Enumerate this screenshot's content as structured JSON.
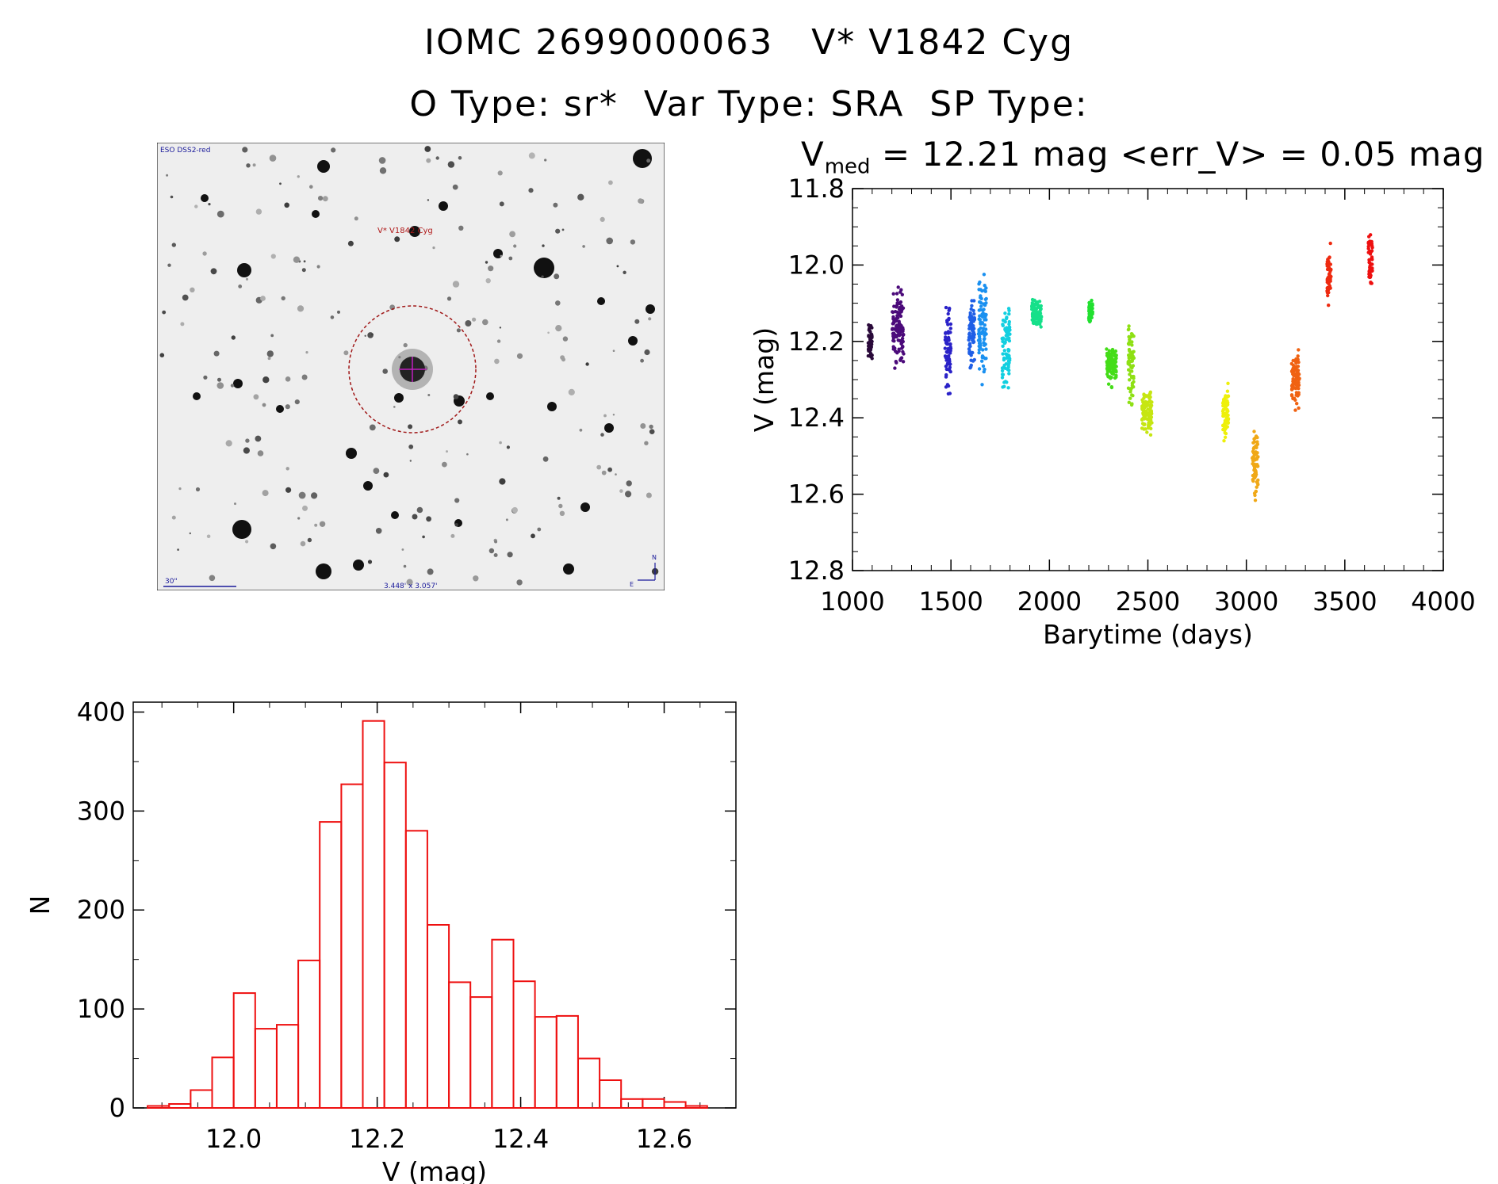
{
  "header": {
    "object_id": "IOMC 2699000063",
    "object_name": "V* V1842 Cyg",
    "o_type": "O Type: sr*",
    "var_type": "Var Type: SRA",
    "sp_type": "SP Type:"
  },
  "stats": {
    "v_prefix": "V",
    "v_sub": "med",
    "v_rest": " = 12.21 mag <err_V> = 0.05 mag"
  },
  "finder_chart": {
    "survey_label": "ESO DSS2-red",
    "target_label": "V* V1842 Cyg",
    "scale_label": "30\"",
    "fov_label": "3.448' x 3.057'",
    "north_label": "N",
    "east_label": "E"
  },
  "chart_data": [
    {
      "type": "scatter",
      "title": "",
      "xlabel": "Barytime (days)",
      "ylabel": "V (mag)",
      "xlim": [
        1000,
        4000
      ],
      "ylim": [
        12.8,
        11.8
      ],
      "y_inverted": true,
      "x_ticks": [
        "1000",
        "1500",
        "2000",
        "2500",
        "3000",
        "3500",
        "4000"
      ],
      "y_ticks": [
        "11.8",
        "12.0",
        "12.2",
        "12.4",
        "12.6",
        "12.8"
      ],
      "series": [
        {
          "color": "#2a0a3a",
          "x_range": [
            1080,
            1100
          ],
          "y_mean": 12.19,
          "y_min": 12.13,
          "y_max": 12.27
        },
        {
          "color": "#4b0a7a",
          "x_range": [
            1200,
            1260
          ],
          "y_mean": 12.15,
          "y_min": 12.04,
          "y_max": 12.3
        },
        {
          "color": "#2a22c8",
          "x_range": [
            1470,
            1500
          ],
          "y_mean": 12.23,
          "y_min": 12.07,
          "y_max": 12.37
        },
        {
          "color": "#1f5fe6",
          "x_range": [
            1590,
            1620
          ],
          "y_mean": 12.18,
          "y_min": 12.06,
          "y_max": 12.3
        },
        {
          "color": "#1a90f0",
          "x_range": [
            1640,
            1680
          ],
          "y_mean": 12.16,
          "y_min": 11.95,
          "y_max": 12.34
        },
        {
          "color": "#12cfe0",
          "x_range": [
            1760,
            1800
          ],
          "y_mean": 12.19,
          "y_min": 12.04,
          "y_max": 12.36
        },
        {
          "color": "#16e08a",
          "x_range": [
            1910,
            1960
          ],
          "y_mean": 12.13,
          "y_min": 12.07,
          "y_max": 12.18
        },
        {
          "color": "#22e030",
          "x_range": [
            2200,
            2220
          ],
          "y_mean": 12.12,
          "y_min": 12.08,
          "y_max": 12.16
        },
        {
          "color": "#44dd18",
          "x_range": [
            2290,
            2340
          ],
          "y_mean": 12.26,
          "y_min": 12.19,
          "y_max": 12.33
        },
        {
          "color": "#8ee014",
          "x_range": [
            2400,
            2430
          ],
          "y_mean": 12.27,
          "y_min": 12.12,
          "y_max": 12.4
        },
        {
          "color": "#c6e612",
          "x_range": [
            2470,
            2520
          ],
          "y_mean": 12.39,
          "y_min": 12.3,
          "y_max": 12.48
        },
        {
          "color": "#eef00a",
          "x_range": [
            2880,
            2910
          ],
          "y_mean": 12.39,
          "y_min": 12.28,
          "y_max": 12.49
        },
        {
          "color": "#f0a816",
          "x_range": [
            3030,
            3060
          ],
          "y_mean": 12.48,
          "y_min": 12.39,
          "y_max": 12.65
        },
        {
          "color": "#f06212",
          "x_range": [
            3230,
            3270
          ],
          "y_mean": 12.28,
          "y_min": 12.2,
          "y_max": 12.4
        },
        {
          "color": "#ee2a10",
          "x_range": [
            3410,
            3430
          ],
          "y_mean": 12.03,
          "y_min": 11.93,
          "y_max": 12.13
        },
        {
          "color": "#ee1010",
          "x_range": [
            3620,
            3640
          ],
          "y_mean": 12.03,
          "y_min": 11.88,
          "y_max": 12.1
        }
      ]
    },
    {
      "type": "bar",
      "title": "",
      "xlabel": "V (mag)",
      "ylabel": "N",
      "xlim": [
        11.86,
        12.7
      ],
      "ylim": [
        0,
        410
      ],
      "x_ticks": [
        "12.0",
        "12.2",
        "12.4",
        "12.6"
      ],
      "y_ticks": [
        "0",
        "100",
        "200",
        "300",
        "400"
      ],
      "bin_width": 0.03,
      "bin_start": 11.88,
      "values": [
        2,
        4,
        18,
        51,
        116,
        80,
        84,
        149,
        289,
        327,
        391,
        349,
        280,
        185,
        127,
        112,
        170,
        128,
        92,
        93,
        50,
        28,
        9,
        9,
        6,
        2
      ],
      "bar_color": "#ee1010"
    }
  ]
}
